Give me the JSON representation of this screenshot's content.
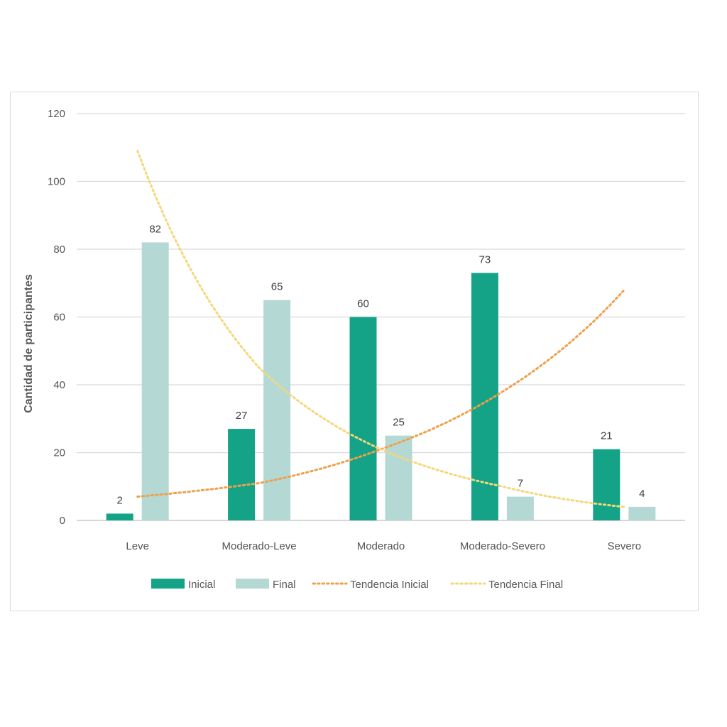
{
  "chart_data": {
    "type": "bar",
    "title": "",
    "xlabel": "",
    "ylabel": "Cantidad de participantes",
    "ylim": [
      0,
      120
    ],
    "yticks": [
      0,
      20,
      40,
      60,
      80,
      100,
      120
    ],
    "grid": true,
    "legend_position": "bottom",
    "categories": [
      "Leve",
      "Moderado-Leve",
      "Moderado",
      "Moderado-Severo",
      "Severo"
    ],
    "series": [
      {
        "name": "Inicial",
        "values": [
          2,
          27,
          60,
          73,
          21
        ],
        "color": "#14a386"
      },
      {
        "name": "Final",
        "values": [
          82,
          65,
          25,
          7,
          4
        ],
        "color": "#b4d8d4"
      }
    ],
    "trendlines": [
      {
        "name": "Tendencia Inicial",
        "of": "Inicial",
        "kind": "exponential",
        "color": "#f0a04b",
        "values": [
          7,
          11,
          21,
          38,
          68
        ]
      },
      {
        "name": "Tendencia Final",
        "of": "Final",
        "kind": "exponential",
        "color": "#f5d77a",
        "values": [
          109,
          45,
          21,
          10,
          4
        ]
      }
    ]
  }
}
